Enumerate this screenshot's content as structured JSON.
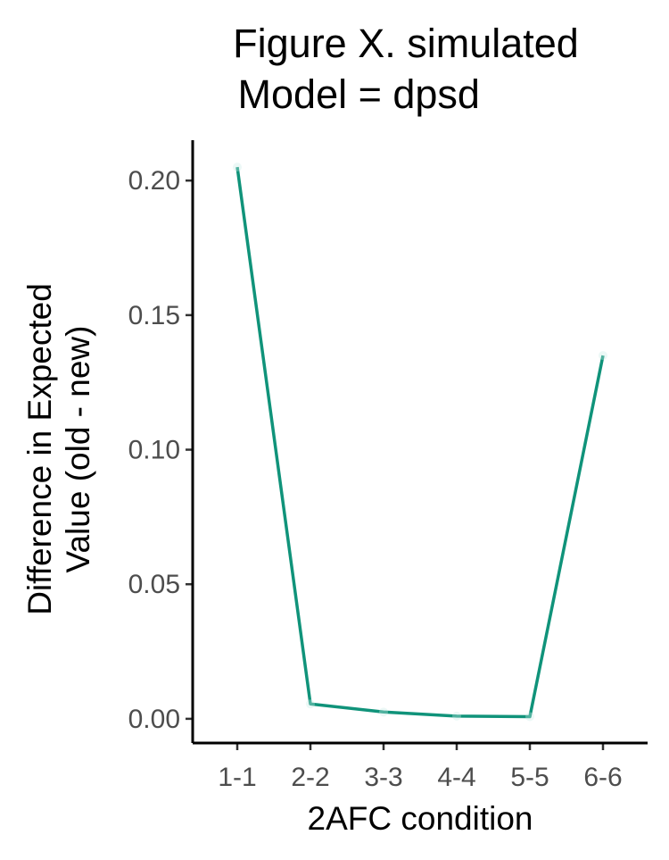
{
  "chart_data": {
    "type": "line",
    "title_lines": [
      "Figure X. simulated",
      " Model = dpsd"
    ],
    "xlabel": "2AFC condition",
    "ylabel_lines": [
      "Difference in Expected",
      "Value (old - new)"
    ],
    "categories": [
      "1-1",
      "2-2",
      "3-3",
      "4-4",
      "5-5",
      "6-6"
    ],
    "values": [
      0.205,
      0.0055,
      0.0025,
      0.001,
      0.0008,
      0.135
    ],
    "yticks": [
      0.0,
      0.05,
      0.1,
      0.15,
      0.2
    ],
    "ytick_labels": [
      "0.00",
      "0.05",
      "0.10",
      "0.15",
      "0.20"
    ],
    "ylim": [
      -0.009,
      0.215
    ],
    "line_color": "#10937a",
    "grid": false,
    "legend": "none"
  }
}
